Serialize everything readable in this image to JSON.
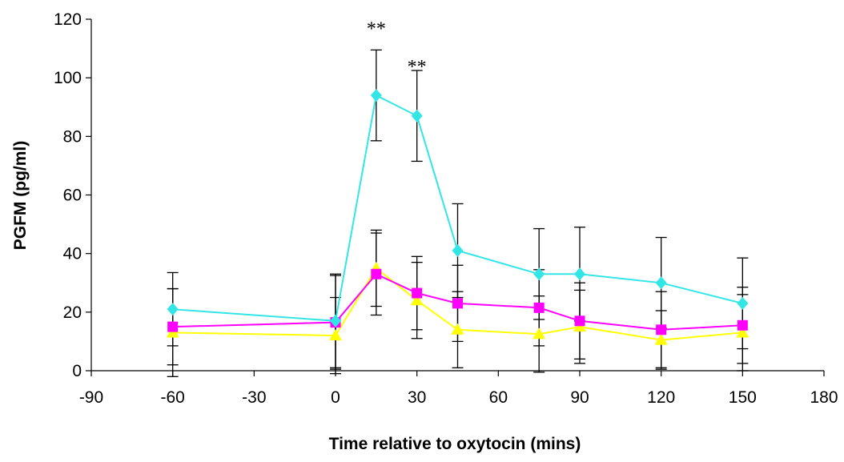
{
  "chart_data": {
    "type": "line",
    "xlabel": "Time relative to oxytocin (mins)",
    "ylabel": "PGFM (pg/ml)",
    "xlim": [
      -90,
      180
    ],
    "ylim": [
      0,
      120
    ],
    "xticks": [
      -90,
      -60,
      -30,
      0,
      30,
      60,
      90,
      120,
      150,
      180
    ],
    "yticks": [
      0,
      20,
      40,
      60,
      80,
      100,
      120
    ],
    "grid": false,
    "legend": "none",
    "series": [
      {
        "color": "#33e6e6",
        "marker": "diamond",
        "points": [
          {
            "x": -60,
            "y": 21,
            "err": 12.5
          },
          {
            "x": 0,
            "y": 17,
            "err": 16
          },
          {
            "x": 15,
            "y": 94,
            "err": 15.5
          },
          {
            "x": 30,
            "y": 87,
            "err": 15.5
          },
          {
            "x": 45,
            "y": 41,
            "err": 16
          },
          {
            "x": 75,
            "y": 33,
            "err": 15.5
          },
          {
            "x": 90,
            "y": 33,
            "err": 16
          },
          {
            "x": 120,
            "y": 30,
            "err": 15.5
          },
          {
            "x": 150,
            "y": 23,
            "err": 15.5
          }
        ]
      },
      {
        "color": "#ff00ff",
        "marker": "square",
        "points": [
          {
            "x": -60,
            "y": 15,
            "err": 13
          },
          {
            "x": 0,
            "y": 16.5,
            "err": 16
          },
          {
            "x": 15,
            "y": 33,
            "err": 14
          },
          {
            "x": 30,
            "y": 26.5,
            "err": 12.5
          },
          {
            "x": 45,
            "y": 23,
            "err": 13
          },
          {
            "x": 75,
            "y": 21.5,
            "err": 13
          },
          {
            "x": 90,
            "y": 17,
            "err": 13
          },
          {
            "x": 120,
            "y": 14,
            "err": 13
          },
          {
            "x": 150,
            "y": 15.5,
            "err": 13
          }
        ]
      },
      {
        "color": "#ffff00",
        "marker": "triangle",
        "points": [
          {
            "x": -60,
            "y": 13,
            "err": 15
          },
          {
            "x": 0,
            "y": 12,
            "err": 13
          },
          {
            "x": 15,
            "y": 35,
            "err": 13
          }
        ]
      }
    ],
    "series_extra": [
      {
        "x": 30,
        "y": 24,
        "err": 13
      },
      {
        "x": 45,
        "y": 14,
        "err": 13
      },
      {
        "x": 75,
        "y": 12.5,
        "err": 13
      },
      {
        "x": 90,
        "y": 15,
        "err": 12.5
      },
      {
        "x": 120,
        "y": 10.5,
        "err": 10
      },
      {
        "x": 150,
        "y": 13,
        "err": 13
      }
    ],
    "annotations": [
      {
        "text": "**",
        "x": 15,
        "y": 118
      },
      {
        "text": "**",
        "x": 30,
        "y": 105
      }
    ]
  }
}
